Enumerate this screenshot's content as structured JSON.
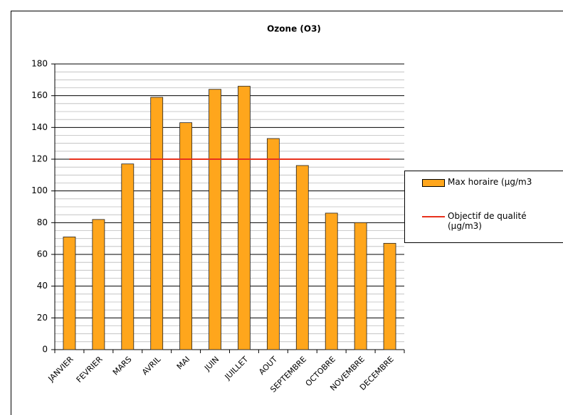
{
  "chart_data": {
    "type": "bar",
    "title": "Ozone (O3)",
    "categories": [
      "JANVIER",
      "FEVRIER",
      "MARS",
      "AVRIL",
      "MAI",
      "JUIN",
      "JUILLET",
      "AOUT",
      "SEPTEMBRE",
      "OCTOBRE",
      "NOVEMBRE",
      "DECEMBRE"
    ],
    "series": [
      {
        "name": "Max horaire (µg/m3",
        "type": "bar",
        "color": "#ffa61c",
        "values": [
          71,
          82,
          117,
          159,
          143,
          164,
          166,
          133,
          116,
          86,
          80,
          67
        ]
      },
      {
        "name": "Objectif de qualité (µg/m3)",
        "type": "line",
        "color": "#e8301c",
        "values": [
          120,
          120,
          120,
          120,
          120,
          120,
          120,
          120,
          120,
          120,
          120,
          120
        ]
      }
    ],
    "ylim": [
      0,
      180
    ],
    "yticks": [
      0,
      20,
      40,
      60,
      80,
      100,
      120,
      140,
      160,
      180
    ],
    "yminorticks": [
      5,
      10,
      15,
      25,
      30,
      35,
      45,
      50,
      55,
      65,
      70,
      75,
      85,
      90,
      95,
      105,
      110,
      115,
      125,
      130,
      135,
      145,
      150,
      155,
      165,
      170,
      175
    ],
    "grid": true
  }
}
